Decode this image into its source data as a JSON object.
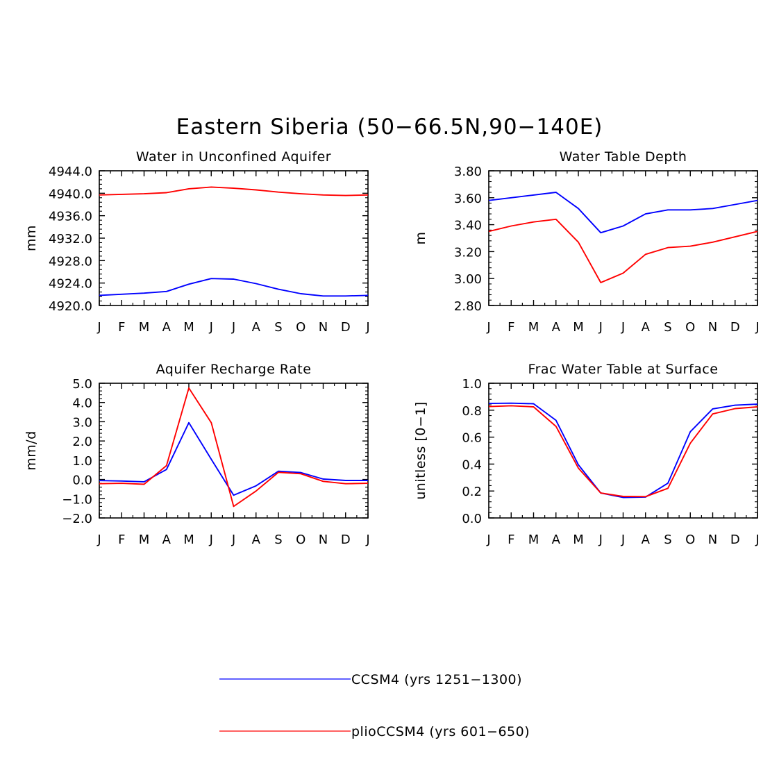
{
  "title": "Eastern Siberia (50−66.5N,90−140E)",
  "colors": {
    "ccsm4": "#0000ff",
    "plio": "#ff0000"
  },
  "legend": [
    {
      "label": "CCSM4 (yrs 1251−1300)",
      "color": "#0000ff"
    },
    {
      "label": "plioCCSM4 (yrs 601−650)",
      "color": "#ff0000"
    }
  ],
  "chart_data": [
    {
      "type": "line",
      "title": "Water in Unconfined Aquifer",
      "xlabel": "",
      "ylabel": "mm",
      "categories": [
        "J",
        "F",
        "M",
        "A",
        "M",
        "J",
        "J",
        "A",
        "S",
        "O",
        "N",
        "D",
        "J"
      ],
      "ylim": [
        4920.0,
        4944.0
      ],
      "yticks": [
        "4920.0",
        "4924.0",
        "4928.0",
        "4932.0",
        "4936.0",
        "4940.0",
        "4944.0"
      ],
      "grid": false,
      "series": [
        {
          "name": "CCSM4 (yrs 1251−1300)",
          "color": "#0000ff",
          "values": [
            4921.8,
            4922.0,
            4922.2,
            4922.5,
            4923.8,
            4924.8,
            4924.7,
            4923.9,
            4922.9,
            4922.1,
            4921.7,
            4921.7,
            4921.8
          ]
        },
        {
          "name": "plioCCSM4 (yrs 601−650)",
          "color": "#ff0000",
          "values": [
            4939.7,
            4939.8,
            4939.9,
            4940.1,
            4940.8,
            4941.1,
            4940.9,
            4940.6,
            4940.2,
            4939.9,
            4939.7,
            4939.6,
            4939.7
          ]
        }
      ]
    },
    {
      "type": "line",
      "title": "Water Table Depth",
      "xlabel": "",
      "ylabel": "m",
      "categories": [
        "J",
        "F",
        "M",
        "A",
        "M",
        "J",
        "J",
        "A",
        "S",
        "O",
        "N",
        "D",
        "J"
      ],
      "ylim": [
        2.8,
        3.8
      ],
      "yticks": [
        "2.80",
        "3.00",
        "3.20",
        "3.40",
        "3.60",
        "3.80"
      ],
      "grid": false,
      "series": [
        {
          "name": "CCSM4 (yrs 1251−1300)",
          "color": "#0000ff",
          "values": [
            3.58,
            3.6,
            3.62,
            3.64,
            3.52,
            3.34,
            3.39,
            3.48,
            3.51,
            3.51,
            3.52,
            3.55,
            3.58
          ]
        },
        {
          "name": "plioCCSM4 (yrs 601−650)",
          "color": "#ff0000",
          "values": [
            3.35,
            3.39,
            3.42,
            3.44,
            3.27,
            2.97,
            3.04,
            3.18,
            3.23,
            3.24,
            3.27,
            3.31,
            3.35
          ]
        }
      ]
    },
    {
      "type": "line",
      "title": "Aquifer Recharge Rate",
      "xlabel": "",
      "ylabel": "mm/d",
      "categories": [
        "J",
        "F",
        "M",
        "A",
        "M",
        "J",
        "J",
        "A",
        "S",
        "O",
        "N",
        "D",
        "J"
      ],
      "ylim": [
        -2.0,
        5.0
      ],
      "yticks": [
        "−2.0",
        "−1.0",
        "0.0",
        "1.0",
        "2.0",
        "3.0",
        "4.0",
        "5.0"
      ],
      "grid": false,
      "series": [
        {
          "name": "CCSM4 (yrs 1251−1300)",
          "color": "#0000ff",
          "values": [
            -0.06,
            -0.08,
            -0.12,
            0.52,
            2.95,
            1.05,
            -0.82,
            -0.33,
            0.43,
            0.36,
            0.02,
            -0.05,
            -0.05
          ]
        },
        {
          "name": "plioCCSM4 (yrs 601−650)",
          "color": "#ff0000",
          "values": [
            -0.22,
            -0.2,
            -0.25,
            0.72,
            4.75,
            2.95,
            -1.4,
            -0.6,
            0.37,
            0.3,
            -0.1,
            -0.22,
            -0.2
          ]
        }
      ]
    },
    {
      "type": "line",
      "title": "Frac Water Table at Surface",
      "xlabel": "",
      "ylabel": "unitless [0−1]",
      "categories": [
        "J",
        "F",
        "M",
        "A",
        "M",
        "J",
        "J",
        "A",
        "S",
        "O",
        "N",
        "D",
        "J"
      ],
      "ylim": [
        0.0,
        1.0
      ],
      "yticks": [
        "0.0",
        "0.2",
        "0.4",
        "0.6",
        "0.8",
        "1.0"
      ],
      "grid": false,
      "series": [
        {
          "name": "CCSM4 (yrs 1251−1300)",
          "color": "#0000ff",
          "values": [
            0.85,
            0.852,
            0.848,
            0.725,
            0.395,
            0.185,
            0.152,
            0.155,
            0.258,
            0.64,
            0.81,
            0.837,
            0.845
          ]
        },
        {
          "name": "plioCCSM4 (yrs 601−650)",
          "color": "#ff0000",
          "values": [
            0.827,
            0.833,
            0.825,
            0.68,
            0.37,
            0.185,
            0.16,
            0.158,
            0.22,
            0.555,
            0.772,
            0.812,
            0.825
          ]
        }
      ]
    }
  ]
}
